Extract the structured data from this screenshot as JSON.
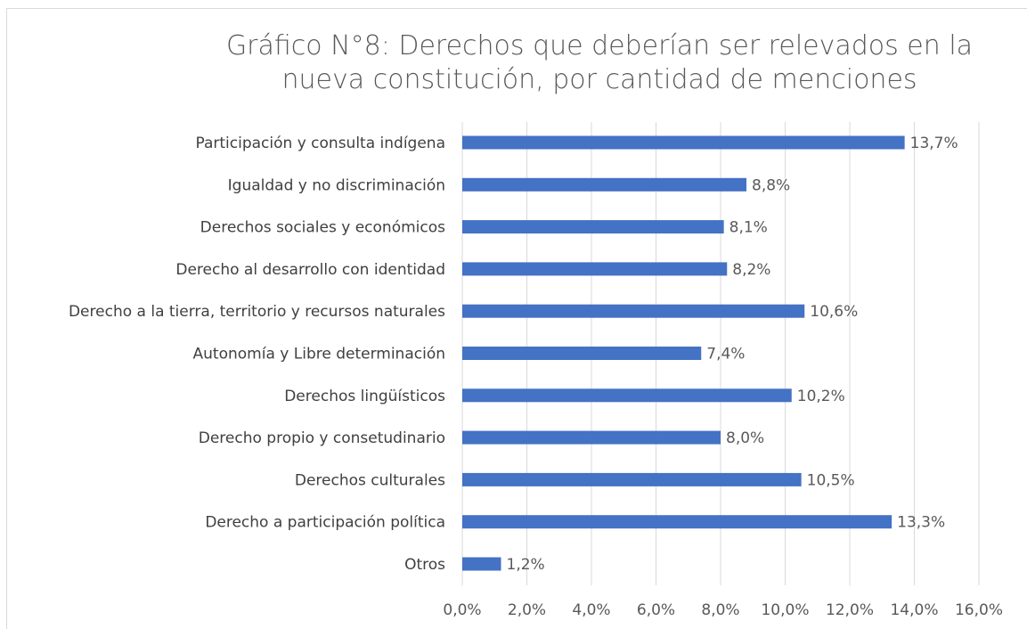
{
  "chart_data": {
    "type": "bar",
    "orientation": "horizontal",
    "title": "Gráfico N°8: Derechos que deberían ser relevados en la nueva constitución, por cantidad de menciones",
    "title_lines": [
      "Gráfico N°8: Derechos que deberían ser relevados en la",
      "nueva constitución, por cantidad de menciones"
    ],
    "categories": [
      "Participación y consulta indígena",
      "Igualdad y no discriminación",
      "Derechos sociales y económicos",
      "Derecho al desarrollo con identidad",
      "Derecho a la tierra, territorio y recursos naturales",
      "Autonomía y Libre determinación",
      "Derechos lingüísticos",
      "Derecho propio y consetudinario",
      "Derechos culturales",
      "Derecho a participación política",
      "Otros"
    ],
    "values": [
      13.7,
      8.8,
      8.1,
      8.2,
      10.6,
      7.4,
      10.2,
      8.0,
      10.5,
      13.3,
      1.2
    ],
    "value_labels": [
      "13,7%",
      "8,8%",
      "8,1%",
      "8,2%",
      "10,6%",
      "7,4%",
      "10,2%",
      "8,0%",
      "10,5%",
      "13,3%",
      "1,2%"
    ],
    "xlim": [
      0,
      16
    ],
    "xticks": [
      0,
      2,
      4,
      6,
      8,
      10,
      12,
      14,
      16
    ],
    "xtick_labels": [
      "0,0%",
      "2,0%",
      "4,0%",
      "6,0%",
      "8,0%",
      "10,0%",
      "12,0%",
      "14,0%",
      "16,0%"
    ],
    "xlabel": "",
    "ylabel": "",
    "grid": true,
    "legend": false,
    "bar_color": "#4472c4",
    "grid_color": "#d9d9d9"
  }
}
